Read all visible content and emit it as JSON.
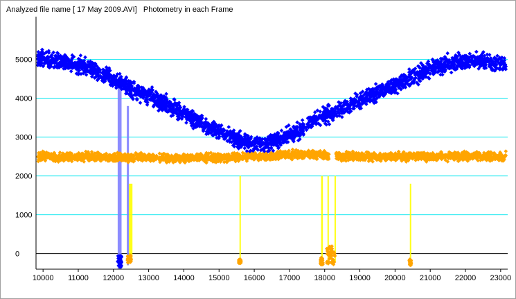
{
  "window": {
    "title": "Analyzed file name [ 17 May 2009.AVI]   Photometry in each Frame"
  },
  "colors": {
    "background": "#ffffff",
    "gridline": "#00e5ee",
    "zero_line": "#000000",
    "series_target": "#0000ff",
    "series_comparison": "#ffa500",
    "marker_blue": "#8080ff",
    "marker_yellow": "#ffff00"
  },
  "chart_data": {
    "type": "scatter",
    "title": "Photometry in each Frame",
    "xlabel": "",
    "ylabel": "",
    "xlim": [
      9800,
      23200
    ],
    "ylim": [
      -400,
      6100
    ],
    "x_ticks": [
      10000,
      11000,
      12000,
      13000,
      14000,
      15000,
      16000,
      17000,
      18000,
      19000,
      20000,
      21000,
      22000,
      23000
    ],
    "y_ticks": [
      0,
      1000,
      2000,
      3000,
      4000,
      5000
    ],
    "grid": "horizontal",
    "series": [
      {
        "color": "#0000ff",
        "x": [
          9850,
          10000,
          10250,
          10500,
          10750,
          11000,
          11250,
          11500,
          11750,
          12000,
          12250,
          12500,
          12750,
          13000,
          13250,
          13500,
          13750,
          14000,
          14250,
          14500,
          14750,
          15000,
          15250,
          15500,
          15750,
          16000,
          16250,
          16500,
          16750,
          17000,
          17250,
          17500,
          17750,
          18000,
          18250,
          18500,
          18750,
          19000,
          19250,
          19500,
          19750,
          20000,
          20250,
          20500,
          20750,
          21000,
          21250,
          21500,
          21750,
          22000,
          22250,
          22500,
          22750,
          23000,
          23150
        ],
        "values": [
          5050,
          5000,
          4980,
          4950,
          4900,
          4850,
          4780,
          4700,
          4600,
          4480,
          4380,
          4280,
          4150,
          4050,
          3950,
          3850,
          3700,
          3600,
          3480,
          3350,
          3250,
          3150,
          3050,
          2950,
          2850,
          2830,
          2850,
          2880,
          2950,
          3050,
          3150,
          3300,
          3450,
          3550,
          3650,
          3750,
          3850,
          3950,
          4050,
          4150,
          4250,
          4350,
          4450,
          4550,
          4650,
          4750,
          4820,
          4880,
          4920,
          4950,
          4970,
          4960,
          4930,
          4880,
          4850
        ]
      },
      {
        "color": "#ffa500",
        "x": [
          9850,
          10500,
          11000,
          11500,
          12000,
          12500,
          13000,
          13500,
          14000,
          14500,
          15000,
          15500,
          16000,
          16500,
          17000,
          17500,
          17900,
          18300,
          18700,
          19000,
          19500,
          20000,
          20500,
          21000,
          21500,
          22000,
          22500,
          23000,
          23150
        ],
        "values": [
          2500,
          2480,
          2500,
          2490,
          2470,
          2480,
          2470,
          2460,
          2450,
          2460,
          2470,
          2480,
          2500,
          2520,
          2540,
          2560,
          2540,
          2500,
          2510,
          2500,
          2500,
          2510,
          2500,
          2490,
          2500,
          2510,
          2500,
          2500,
          2500
        ]
      }
    ],
    "annotations": [
      {
        "type": "vband",
        "color": "#8080ff",
        "x0": 12120,
        "x1": 12230,
        "y0": -400,
        "y1": 4300
      },
      {
        "type": "vband",
        "color": "#8080ff",
        "x0": 12380,
        "x1": 12440,
        "y0": -300,
        "y1": 3800
      },
      {
        "type": "vband",
        "color": "#ffff00",
        "x0": 12440,
        "x1": 12540,
        "y0": -200,
        "y1": 1800
      },
      {
        "type": "vband",
        "color": "#ffff00",
        "x0": 15580,
        "x1": 15610,
        "y0": -200,
        "y1": 2000
      },
      {
        "type": "vband",
        "color": "#ffff00",
        "x0": 17900,
        "x1": 17950,
        "y0": -300,
        "y1": 2000
      },
      {
        "type": "vband",
        "color": "#ffff00",
        "x0": 18080,
        "x1": 18110,
        "y0": -300,
        "y1": 2000
      },
      {
        "type": "vband",
        "color": "#ffff00",
        "x0": 18280,
        "x1": 18310,
        "y0": -200,
        "y1": 2000
      },
      {
        "type": "vband",
        "color": "#ffff00",
        "x0": 20420,
        "x1": 20460,
        "y0": -250,
        "y1": 1800
      }
    ],
    "dips": [
      {
        "color": "#0000ff",
        "x0": 12120,
        "x1": 12230,
        "y_low": -350,
        "y_high": -50
      },
      {
        "color": "#ffa500",
        "x0": 12400,
        "x1": 12500,
        "y_low": -250,
        "y_high": -50
      },
      {
        "color": "#ffa500",
        "x0": 15560,
        "x1": 15620,
        "y_low": -250,
        "y_high": -150
      },
      {
        "color": "#ffa500",
        "x0": 17880,
        "x1": 17950,
        "y_low": -300,
        "y_high": -100
      },
      {
        "color": "#ffa500",
        "x0": 18050,
        "x1": 18300,
        "y_low": -300,
        "y_high": 200
      },
      {
        "color": "#ffa500",
        "x0": 20400,
        "x1": 20460,
        "y_low": -300,
        "y_high": -150
      }
    ],
    "spread": {
      "target": 300,
      "comparison": 150
    }
  }
}
